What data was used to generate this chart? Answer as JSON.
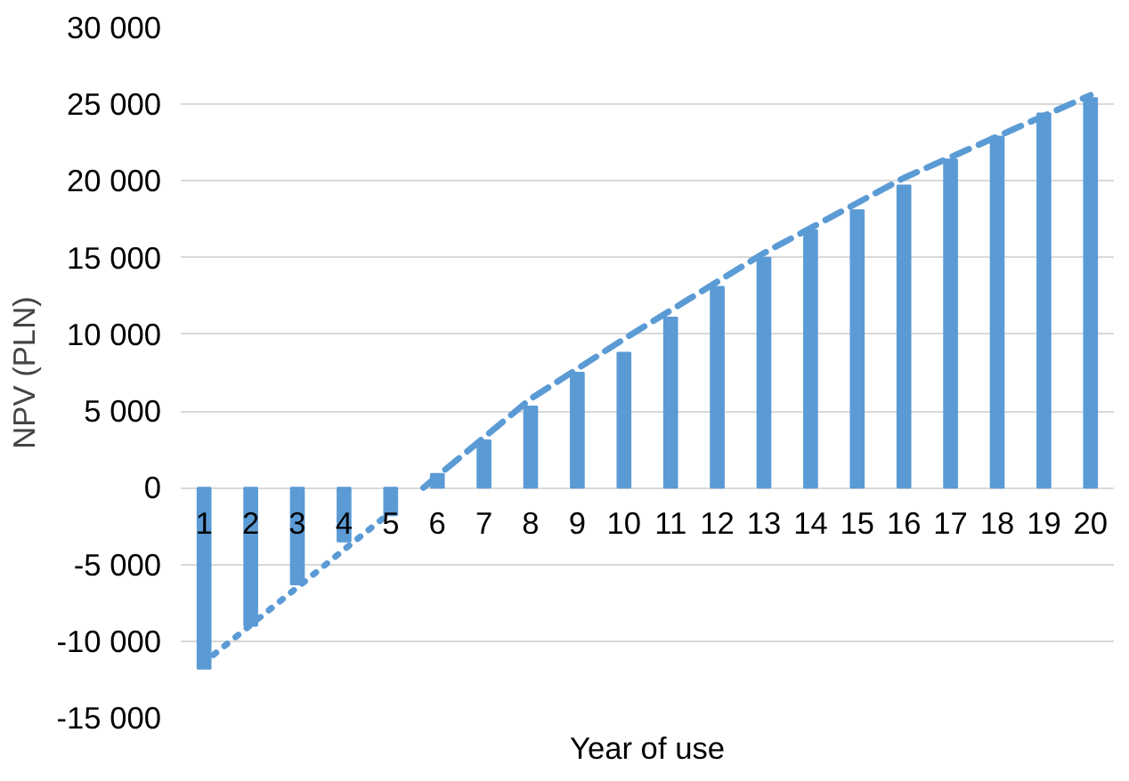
{
  "chart_data": {
    "type": "bar",
    "xlabel": "Year of use",
    "ylabel": "NPV (PLN)",
    "x": [
      1,
      2,
      3,
      4,
      5,
      6,
      7,
      8,
      9,
      10,
      11,
      12,
      13,
      14,
      15,
      16,
      17,
      18,
      19,
      20
    ],
    "xlim": [
      0.5,
      20.5
    ],
    "xticks": [
      1,
      2,
      3,
      4,
      5,
      6,
      7,
      8,
      9,
      10,
      11,
      12,
      13,
      14,
      15,
      16,
      17,
      18,
      19,
      20
    ],
    "series": [
      {
        "color": "#5b9bd5",
        "values": [
          -11800,
          -9000,
          -6300,
          -3500,
          -1800,
          900,
          3100,
          5300,
          7500,
          8800,
          11100,
          13100,
          15000,
          16800,
          18100,
          19700,
          21400,
          22900,
          24400,
          25400
        ]
      },
      {
        "type": "line",
        "color": "#5b9bd5",
        "line_style": "dotted",
        "x": [
          1.2,
          5.2
        ],
        "values": [
          -10900,
          -1100
        ]
      },
      {
        "type": "line",
        "color": "#5b9bd5",
        "line_style": "dashed",
        "x": [
          5.7,
          8,
          10,
          13,
          16,
          20
        ],
        "values": [
          0,
          5800,
          9700,
          15300,
          20200,
          25600
        ]
      }
    ],
    "ylim": [
      -15000,
      30000
    ],
    "yticks": [
      {
        "value": -15000,
        "label": "-15 000"
      },
      {
        "value": -10000,
        "label": "-10 000"
      },
      {
        "value": -5000,
        "label": "-5 000"
      },
      0,
      {
        "value": 5000,
        "label": "5 000"
      },
      {
        "value": 10000,
        "label": "10 000"
      },
      {
        "value": 15000,
        "label": "15 000"
      },
      {
        "value": 20000,
        "label": "20 000"
      },
      {
        "value": 25000,
        "label": "25 000"
      },
      {
        "value": 30000,
        "label": "30 000"
      }
    ],
    "grid": "y"
  }
}
